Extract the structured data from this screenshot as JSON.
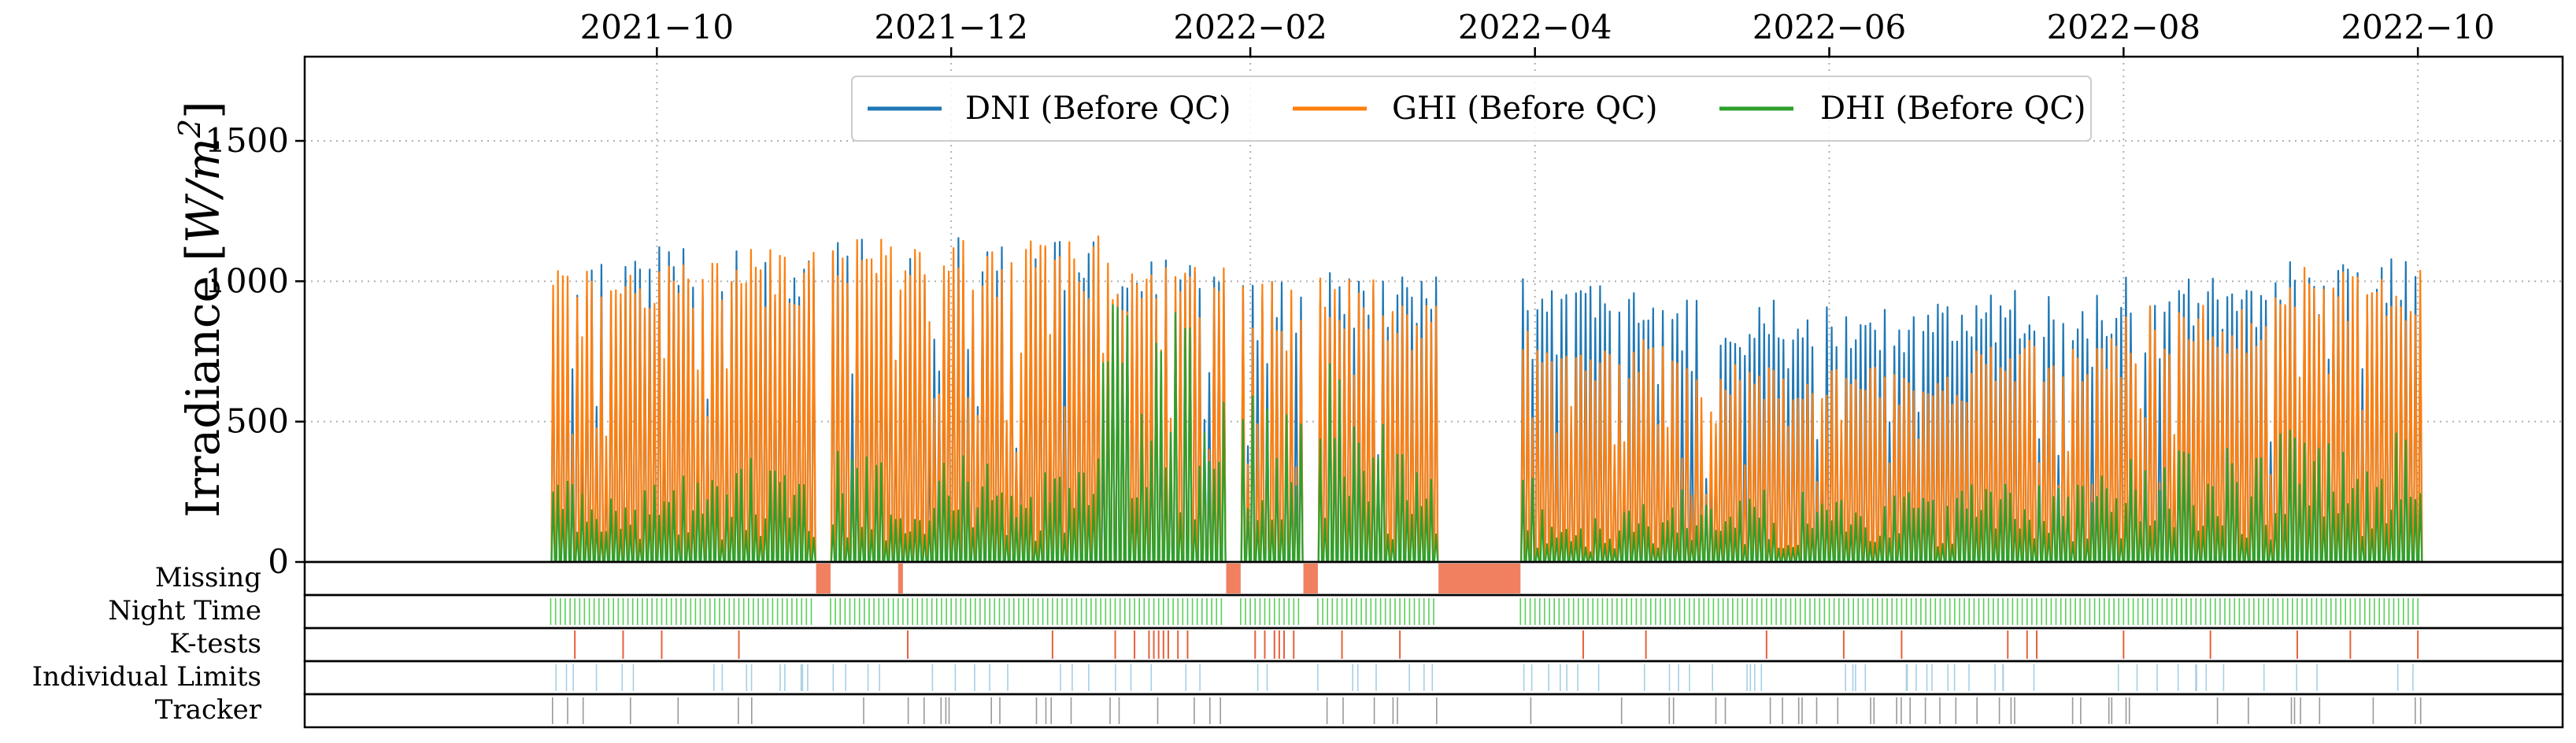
{
  "chart_data": {
    "type": "line",
    "title": "",
    "ylabel": "Irradiance [W/m²]",
    "ylabel_parts": {
      "main": "Irradiance [",
      "unit_symbol": "W/m",
      "unit_exp": "2",
      "close": "]"
    },
    "ylim": [
      0,
      1800
    ],
    "y_ticks": [
      0,
      500,
      1000,
      1500
    ],
    "x_range": [
      "2021-07-20",
      "2022-10-31"
    ],
    "x_ticks": [
      {
        "date": "2021-10-01",
        "label": "2021−10"
      },
      {
        "date": "2021-12-01",
        "label": "2021−12"
      },
      {
        "date": "2022-02-01",
        "label": "2022−02"
      },
      {
        "date": "2022-04-01",
        "label": "2022−04"
      },
      {
        "date": "2022-06-01",
        "label": "2022−06"
      },
      {
        "date": "2022-08-01",
        "label": "2022−08"
      },
      {
        "date": "2022-10-01",
        "label": "2022−10"
      }
    ],
    "grid": true,
    "legend_position": "top-center",
    "data_start": "2021-09-09",
    "data_end": "2022-10-01",
    "series": [
      {
        "name": "DNI (Before QC)",
        "color": "#1f77b4",
        "monthly_typical_peak": [
          {
            "month": "2021-09",
            "value": 1050
          },
          {
            "month": "2021-10",
            "value": 1100
          },
          {
            "month": "2021-11",
            "value": 1130
          },
          {
            "month": "2021-12",
            "value": 1140
          },
          {
            "month": "2022-01",
            "value": 1060
          },
          {
            "month": "2022-02",
            "value": 1030
          },
          {
            "month": "2022-03",
            "value": 1000
          },
          {
            "month": "2022-04",
            "value": 980
          },
          {
            "month": "2022-05",
            "value": 930
          },
          {
            "month": "2022-06",
            "value": 900
          },
          {
            "month": "2022-07",
            "value": 950
          },
          {
            "month": "2022-08",
            "value": 1000
          },
          {
            "month": "2022-09",
            "value": 1060
          }
        ]
      },
      {
        "name": "GHI (Before QC)",
        "color": "#ff7f0e",
        "monthly_typical_peak": [
          {
            "month": "2021-09",
            "value": 1040
          },
          {
            "month": "2021-10",
            "value": 1100
          },
          {
            "month": "2021-11",
            "value": 1130
          },
          {
            "month": "2021-12",
            "value": 1140
          },
          {
            "month": "2022-01",
            "value": 1050
          },
          {
            "month": "2022-02",
            "value": 1000
          },
          {
            "month": "2022-03",
            "value": 900
          },
          {
            "month": "2022-04",
            "value": 780
          },
          {
            "month": "2022-05",
            "value": 700
          },
          {
            "month": "2022-06",
            "value": 680
          },
          {
            "month": "2022-07",
            "value": 780
          },
          {
            "month": "2022-08",
            "value": 900
          },
          {
            "month": "2022-09",
            "value": 1040
          }
        ]
      },
      {
        "name": "DHI (Before QC)",
        "color": "#2ca02c",
        "monthly_typical_peak": [
          {
            "month": "2021-09",
            "value": 300
          },
          {
            "month": "2021-10",
            "value": 350
          },
          {
            "month": "2021-11",
            "value": 400
          },
          {
            "month": "2021-12",
            "value": 350
          },
          {
            "month": "2022-01",
            "value": 900
          },
          {
            "month": "2022-02",
            "value": 700
          },
          {
            "month": "2022-03",
            "value": 400
          },
          {
            "month": "2022-04",
            "value": 200
          },
          {
            "month": "2022-05",
            "value": 250
          },
          {
            "month": "2022-06",
            "value": 250
          },
          {
            "month": "2022-07",
            "value": 300
          },
          {
            "month": "2022-08",
            "value": 400
          },
          {
            "month": "2022-09",
            "value": 450
          }
        ]
      }
    ],
    "gaps": [
      {
        "start": "2021-11-03",
        "end": "2021-11-05"
      },
      {
        "start": "2022-01-27",
        "end": "2022-01-29"
      },
      {
        "start": "2022-02-12",
        "end": "2022-02-14"
      },
      {
        "start": "2022-03-12",
        "end": "2022-03-28"
      }
    ],
    "flag_rows": [
      {
        "label": "Missing",
        "color": "#f08060",
        "spans": [
          {
            "start": "2021-11-03",
            "end": "2021-11-05"
          },
          {
            "start": "2021-11-20",
            "end": "2021-11-20"
          },
          {
            "start": "2022-01-27",
            "end": "2022-01-29"
          },
          {
            "start": "2022-02-12",
            "end": "2022-02-14"
          },
          {
            "start": "2022-03-12",
            "end": "2022-03-28"
          }
        ]
      },
      {
        "label": "Night Time",
        "color": "#5ad05a",
        "pattern": "daily",
        "excluded_gaps": true
      },
      {
        "label": "K-tests",
        "color": "#e8603c",
        "dates": [
          "2021-09-14",
          "2021-09-24",
          "2021-10-02",
          "2021-10-18",
          "2021-11-22",
          "2021-12-22",
          "2022-01-04",
          "2022-01-08",
          "2022-01-11",
          "2022-01-12",
          "2022-01-13",
          "2022-01-14",
          "2022-01-15",
          "2022-01-17",
          "2022-01-19",
          "2022-02-02",
          "2022-02-04",
          "2022-02-06",
          "2022-02-07",
          "2022-02-08",
          "2022-02-10",
          "2022-02-20",
          "2022-03-04",
          "2022-04-11",
          "2022-04-24",
          "2022-05-19",
          "2022-06-04",
          "2022-06-16",
          "2022-07-08",
          "2022-07-12",
          "2022-07-14",
          "2022-08-01",
          "2022-08-19",
          "2022-09-06",
          "2022-09-17",
          "2022-10-01"
        ]
      },
      {
        "label": "Individual Limits",
        "color": "#a6cfe6",
        "pattern": "sparse"
      },
      {
        "label": "Tracker",
        "color": "#9a9a9a",
        "pattern": "sparse"
      }
    ]
  }
}
